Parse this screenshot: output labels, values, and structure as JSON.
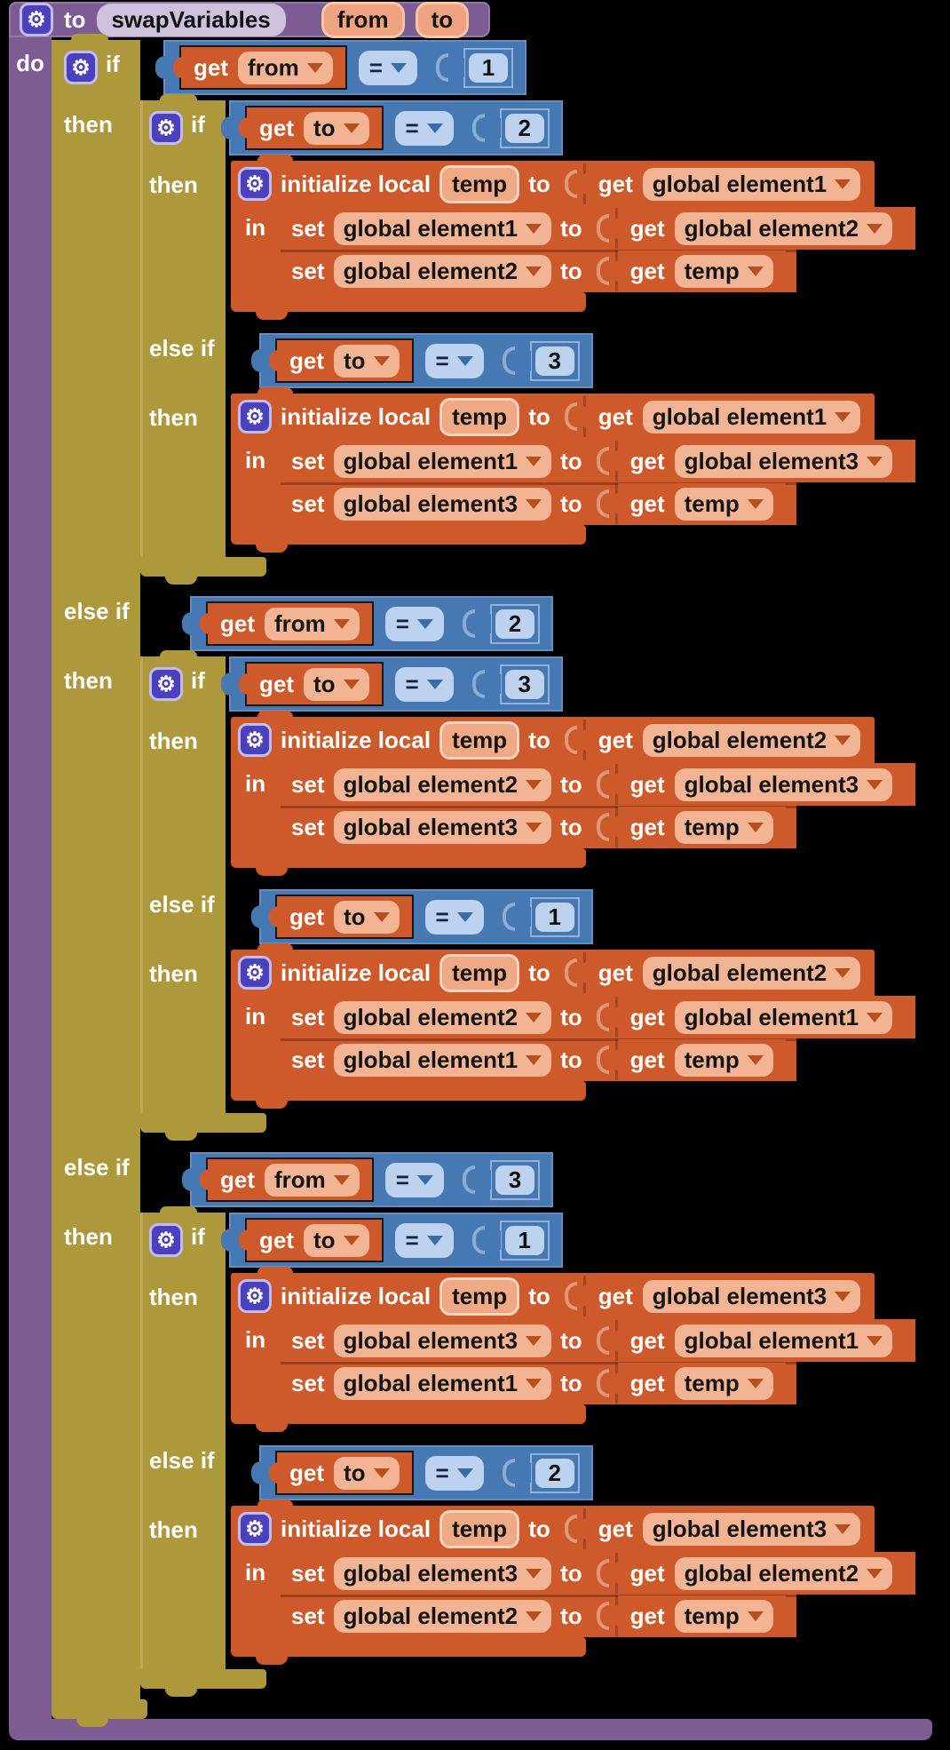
{
  "colors": {
    "background": "#000000",
    "procedure_purple": "#7D5C94",
    "control_mustard": "#AE983C",
    "math_blue": "#4679B3",
    "math_field_lightblue": "#BDD2EE",
    "variable_orange": "#CE5A2B",
    "dropdown_salmon": "#F2B493",
    "gear_indigo": "#4B40BE",
    "name_field_lavender": "#CDC1DB",
    "param_chip_salmon": "#EFA380"
  },
  "labels": {
    "to": "to",
    "do": "do",
    "if": "if",
    "then": "then",
    "else_if": "else if",
    "in": "in",
    "get": "get",
    "set": "set",
    "init_local": "initialize local",
    "eq": "=",
    "gear_glyph": "⚙"
  },
  "procedure": {
    "name": "swapVariables",
    "params": [
      "from",
      "to"
    ]
  },
  "program": {
    "branches": [
      {
        "cond": {
          "var": "from",
          "op": "=",
          "num": "1"
        },
        "inner": {
          "branches": [
            {
              "cond": {
                "var": "to",
                "op": "=",
                "num": "2"
              },
              "body": {
                "local": "temp",
                "init_from": "global element1",
                "sets": [
                  {
                    "target": "global element1",
                    "source": "global element2"
                  },
                  {
                    "target": "global element2",
                    "source": "temp"
                  }
                ]
              }
            },
            {
              "cond": {
                "var": "to",
                "op": "=",
                "num": "3"
              },
              "body": {
                "local": "temp",
                "init_from": "global element1",
                "sets": [
                  {
                    "target": "global element1",
                    "source": "global element3"
                  },
                  {
                    "target": "global element3",
                    "source": "temp"
                  }
                ]
              }
            }
          ]
        }
      },
      {
        "cond": {
          "var": "from",
          "op": "=",
          "num": "2"
        },
        "inner": {
          "branches": [
            {
              "cond": {
                "var": "to",
                "op": "=",
                "num": "3"
              },
              "body": {
                "local": "temp",
                "init_from": "global element2",
                "sets": [
                  {
                    "target": "global element2",
                    "source": "global element3"
                  },
                  {
                    "target": "global element3",
                    "source": "temp"
                  }
                ]
              }
            },
            {
              "cond": {
                "var": "to",
                "op": "=",
                "num": "1"
              },
              "body": {
                "local": "temp",
                "init_from": "global element2",
                "sets": [
                  {
                    "target": "global element2",
                    "source": "global element1"
                  },
                  {
                    "target": "global element1",
                    "source": "temp"
                  }
                ]
              }
            }
          ]
        }
      },
      {
        "cond": {
          "var": "from",
          "op": "=",
          "num": "3"
        },
        "inner": {
          "branches": [
            {
              "cond": {
                "var": "to",
                "op": "=",
                "num": "1"
              },
              "body": {
                "local": "temp",
                "init_from": "global element3",
                "sets": [
                  {
                    "target": "global element3",
                    "source": "global element1"
                  },
                  {
                    "target": "global element1",
                    "source": "temp"
                  }
                ]
              }
            },
            {
              "cond": {
                "var": "to",
                "op": "=",
                "num": "2"
              },
              "body": {
                "local": "temp",
                "init_from": "global element3",
                "sets": [
                  {
                    "target": "global element3",
                    "source": "global element2"
                  },
                  {
                    "target": "global element2",
                    "source": "temp"
                  }
                ]
              }
            }
          ]
        }
      }
    ]
  }
}
